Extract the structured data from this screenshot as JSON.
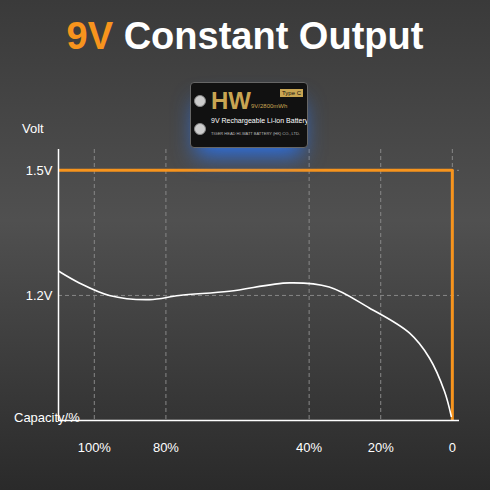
{
  "chart_data": {
    "type": "line",
    "title": "9V Constant Output",
    "x_label": "Capacity/%",
    "y_label": "Volt",
    "xlim": [
      110,
      -2
    ],
    "xticks": [
      {
        "value": 100,
        "label": "100%"
      },
      {
        "value": 80,
        "label": "80%"
      },
      {
        "value": 40,
        "label": "40%"
      },
      {
        "value": 20,
        "label": "20%"
      },
      {
        "value": 0,
        "label": "0"
      }
    ],
    "ylim": [
      0.9,
      1.55
    ],
    "yticks": [
      {
        "value": 1.2,
        "label": "1.2V"
      },
      {
        "value": 1.5,
        "label": "1.5V"
      }
    ],
    "grid": true,
    "series": [
      {
        "color": "#f7941d",
        "line_style": "solid",
        "x": [
          110,
          0,
          0
        ],
        "values": [
          1.5,
          1.5,
          0.9
        ]
      },
      {
        "color": "#ffffff",
        "line_style": "smooth",
        "x": [
          110.3,
          104.2,
          95.8,
          84.6,
          76.3,
          62.3,
          45.5,
          34.4,
          23.2,
          12.0,
          6.4,
          2.2,
          0.3
        ],
        "values": [
          1.26,
          1.23,
          1.2,
          1.19,
          1.2,
          1.21,
          1.23,
          1.22,
          1.17,
          1.11,
          1.05,
          0.97,
          0.91
        ]
      }
    ]
  },
  "battery_label": {
    "brand": "HW",
    "badge": "Type C",
    "capacity": "9V/2800mWh",
    "product": "9V Rechargeable Li-ion Battery",
    "maker": "TIGER HEAD HI-WATT BATTERY (HK) CO., LTD."
  }
}
